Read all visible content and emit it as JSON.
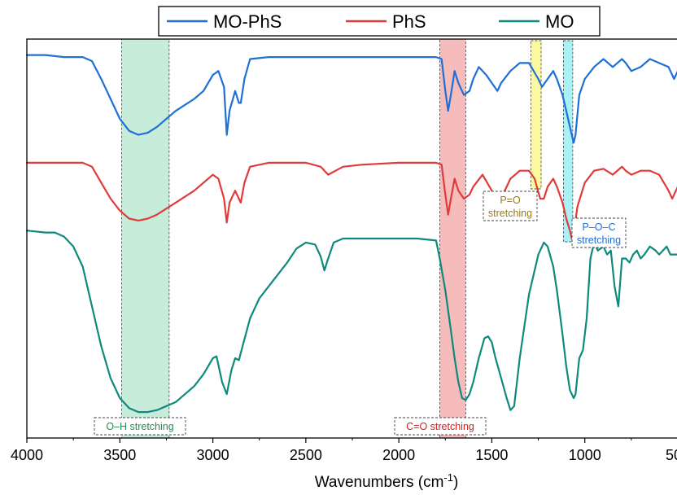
{
  "chart_data": {
    "type": "line",
    "xlabel": "Wavenumbers (cm",
    "xlabel_sup": "-1",
    "xlabel_suffix": ")",
    "xlim": [
      4000,
      500
    ],
    "x_reversed": true,
    "y_ticks_shown": false,
    "xticks": [
      4000,
      3500,
      3000,
      2500,
      2000,
      1500,
      1000,
      500
    ],
    "xtick_labels": [
      "4000",
      "3500",
      "3000",
      "2500",
      "2000",
      "1500",
      "1000",
      "500"
    ],
    "legend": {
      "placement": "top-outside",
      "entries": [
        {
          "name": "MO-PhS",
          "color": "#1f6fd6"
        },
        {
          "name": "PhS",
          "color": "#e03b3b"
        },
        {
          "name": "MO",
          "color": "#0e8a7c"
        }
      ]
    },
    "series": [
      {
        "name": "MO-PhS",
        "color": "#1f6fd6",
        "points": [
          [
            4000,
            0.96
          ],
          [
            3900,
            0.96
          ],
          [
            3800,
            0.955
          ],
          [
            3700,
            0.955
          ],
          [
            3650,
            0.945
          ],
          [
            3600,
            0.9
          ],
          [
            3550,
            0.85
          ],
          [
            3500,
            0.8
          ],
          [
            3450,
            0.77
          ],
          [
            3400,
            0.76
          ],
          [
            3350,
            0.765
          ],
          [
            3300,
            0.78
          ],
          [
            3200,
            0.82
          ],
          [
            3100,
            0.85
          ],
          [
            3050,
            0.87
          ],
          [
            3000,
            0.91
          ],
          [
            2970,
            0.92
          ],
          [
            2940,
            0.88
          ],
          [
            2925,
            0.76
          ],
          [
            2910,
            0.82
          ],
          [
            2880,
            0.87
          ],
          [
            2860,
            0.84
          ],
          [
            2850,
            0.84
          ],
          [
            2830,
            0.9
          ],
          [
            2800,
            0.95
          ],
          [
            2700,
            0.955
          ],
          [
            2500,
            0.955
          ],
          [
            2200,
            0.955
          ],
          [
            2000,
            0.955
          ],
          [
            1800,
            0.955
          ],
          [
            1770,
            0.95
          ],
          [
            1750,
            0.87
          ],
          [
            1735,
            0.82
          ],
          [
            1720,
            0.86
          ],
          [
            1700,
            0.92
          ],
          [
            1680,
            0.89
          ],
          [
            1650,
            0.86
          ],
          [
            1620,
            0.87
          ],
          [
            1600,
            0.9
          ],
          [
            1570,
            0.93
          ],
          [
            1530,
            0.91
          ],
          [
            1470,
            0.87
          ],
          [
            1450,
            0.89
          ],
          [
            1400,
            0.92
          ],
          [
            1350,
            0.94
          ],
          [
            1300,
            0.94
          ],
          [
            1250,
            0.9
          ],
          [
            1230,
            0.88
          ],
          [
            1200,
            0.9
          ],
          [
            1170,
            0.92
          ],
          [
            1150,
            0.9
          ],
          [
            1120,
            0.86
          ],
          [
            1100,
            0.82
          ],
          [
            1080,
            0.78
          ],
          [
            1060,
            0.74
          ],
          [
            1050,
            0.76
          ],
          [
            1030,
            0.86
          ],
          [
            1000,
            0.9
          ],
          [
            950,
            0.93
          ],
          [
            900,
            0.95
          ],
          [
            850,
            0.93
          ],
          [
            800,
            0.95
          ],
          [
            780,
            0.94
          ],
          [
            750,
            0.92
          ],
          [
            700,
            0.93
          ],
          [
            650,
            0.95
          ],
          [
            600,
            0.94
          ],
          [
            550,
            0.93
          ],
          [
            520,
            0.9
          ],
          [
            500,
            0.92
          ]
        ]
      },
      {
        "name": "PhS",
        "color": "#e03b3b",
        "points": [
          [
            4000,
            0.69
          ],
          [
            3900,
            0.69
          ],
          [
            3800,
            0.69
          ],
          [
            3700,
            0.69
          ],
          [
            3650,
            0.68
          ],
          [
            3600,
            0.64
          ],
          [
            3550,
            0.6
          ],
          [
            3500,
            0.57
          ],
          [
            3450,
            0.55
          ],
          [
            3400,
            0.545
          ],
          [
            3350,
            0.55
          ],
          [
            3300,
            0.56
          ],
          [
            3200,
            0.59
          ],
          [
            3100,
            0.62
          ],
          [
            3050,
            0.64
          ],
          [
            3000,
            0.66
          ],
          [
            2970,
            0.65
          ],
          [
            2940,
            0.6
          ],
          [
            2925,
            0.54
          ],
          [
            2910,
            0.59
          ],
          [
            2880,
            0.62
          ],
          [
            2860,
            0.6
          ],
          [
            2850,
            0.59
          ],
          [
            2830,
            0.64
          ],
          [
            2800,
            0.68
          ],
          [
            2700,
            0.69
          ],
          [
            2500,
            0.69
          ],
          [
            2420,
            0.68
          ],
          [
            2380,
            0.66
          ],
          [
            2340,
            0.67
          ],
          [
            2300,
            0.68
          ],
          [
            2200,
            0.685
          ],
          [
            2000,
            0.69
          ],
          [
            1800,
            0.69
          ],
          [
            1770,
            0.685
          ],
          [
            1750,
            0.61
          ],
          [
            1735,
            0.56
          ],
          [
            1720,
            0.6
          ],
          [
            1700,
            0.65
          ],
          [
            1680,
            0.62
          ],
          [
            1650,
            0.6
          ],
          [
            1620,
            0.61
          ],
          [
            1600,
            0.63
          ],
          [
            1550,
            0.66
          ],
          [
            1500,
            0.62
          ],
          [
            1470,
            0.6
          ],
          [
            1430,
            0.62
          ],
          [
            1400,
            0.65
          ],
          [
            1350,
            0.67
          ],
          [
            1300,
            0.67
          ],
          [
            1270,
            0.65
          ],
          [
            1240,
            0.6
          ],
          [
            1220,
            0.6
          ],
          [
            1200,
            0.63
          ],
          [
            1170,
            0.65
          ],
          [
            1150,
            0.63
          ],
          [
            1120,
            0.59
          ],
          [
            1100,
            0.55
          ],
          [
            1080,
            0.52
          ],
          [
            1070,
            0.5
          ],
          [
            1060,
            0.51
          ],
          [
            1040,
            0.58
          ],
          [
            1000,
            0.64
          ],
          [
            950,
            0.67
          ],
          [
            900,
            0.675
          ],
          [
            850,
            0.66
          ],
          [
            800,
            0.68
          ],
          [
            780,
            0.67
          ],
          [
            750,
            0.66
          ],
          [
            700,
            0.67
          ],
          [
            650,
            0.67
          ],
          [
            600,
            0.66
          ],
          [
            550,
            0.62
          ],
          [
            530,
            0.6
          ],
          [
            500,
            0.63
          ]
        ]
      },
      {
        "name": "MO",
        "color": "#0e8a7c",
        "points": [
          [
            4000,
            0.52
          ],
          [
            3900,
            0.515
          ],
          [
            3850,
            0.515
          ],
          [
            3800,
            0.505
          ],
          [
            3750,
            0.48
          ],
          [
            3700,
            0.43
          ],
          [
            3650,
            0.33
          ],
          [
            3600,
            0.23
          ],
          [
            3550,
            0.15
          ],
          [
            3500,
            0.1
          ],
          [
            3450,
            0.075
          ],
          [
            3400,
            0.065
          ],
          [
            3350,
            0.065
          ],
          [
            3300,
            0.07
          ],
          [
            3200,
            0.09
          ],
          [
            3100,
            0.13
          ],
          [
            3050,
            0.16
          ],
          [
            3000,
            0.2
          ],
          [
            2980,
            0.205
          ],
          [
            2950,
            0.14
          ],
          [
            2925,
            0.11
          ],
          [
            2900,
            0.17
          ],
          [
            2880,
            0.2
          ],
          [
            2860,
            0.195
          ],
          [
            2840,
            0.23
          ],
          [
            2800,
            0.3
          ],
          [
            2750,
            0.35
          ],
          [
            2700,
            0.38
          ],
          [
            2600,
            0.44
          ],
          [
            2550,
            0.475
          ],
          [
            2500,
            0.49
          ],
          [
            2450,
            0.485
          ],
          [
            2420,
            0.455
          ],
          [
            2400,
            0.42
          ],
          [
            2380,
            0.45
          ],
          [
            2350,
            0.49
          ],
          [
            2300,
            0.5
          ],
          [
            2200,
            0.5
          ],
          [
            2100,
            0.5
          ],
          [
            2000,
            0.5
          ],
          [
            1900,
            0.5
          ],
          [
            1800,
            0.495
          ],
          [
            1780,
            0.45
          ],
          [
            1750,
            0.37
          ],
          [
            1720,
            0.27
          ],
          [
            1700,
            0.2
          ],
          [
            1680,
            0.14
          ],
          [
            1660,
            0.1
          ],
          [
            1640,
            0.095
          ],
          [
            1620,
            0.11
          ],
          [
            1600,
            0.14
          ],
          [
            1570,
            0.2
          ],
          [
            1540,
            0.25
          ],
          [
            1520,
            0.255
          ],
          [
            1500,
            0.24
          ],
          [
            1480,
            0.2
          ],
          [
            1450,
            0.15
          ],
          [
            1420,
            0.1
          ],
          [
            1400,
            0.07
          ],
          [
            1380,
            0.08
          ],
          [
            1350,
            0.2
          ],
          [
            1300,
            0.36
          ],
          [
            1250,
            0.46
          ],
          [
            1220,
            0.49
          ],
          [
            1200,
            0.48
          ],
          [
            1170,
            0.43
          ],
          [
            1150,
            0.37
          ],
          [
            1120,
            0.26
          ],
          [
            1100,
            0.18
          ],
          [
            1080,
            0.12
          ],
          [
            1060,
            0.1
          ],
          [
            1050,
            0.11
          ],
          [
            1030,
            0.2
          ],
          [
            1010,
            0.22
          ],
          [
            990,
            0.3
          ],
          [
            970,
            0.45
          ],
          [
            950,
            0.49
          ],
          [
            930,
            0.47
          ],
          [
            900,
            0.48
          ],
          [
            880,
            0.46
          ],
          [
            860,
            0.47
          ],
          [
            840,
            0.38
          ],
          [
            820,
            0.33
          ],
          [
            800,
            0.45
          ],
          [
            780,
            0.45
          ],
          [
            760,
            0.44
          ],
          [
            740,
            0.46
          ],
          [
            720,
            0.47
          ],
          [
            700,
            0.45
          ],
          [
            680,
            0.46
          ],
          [
            650,
            0.48
          ],
          [
            620,
            0.47
          ],
          [
            600,
            0.46
          ],
          [
            580,
            0.47
          ],
          [
            560,
            0.48
          ],
          [
            540,
            0.46
          ],
          [
            520,
            0.46
          ],
          [
            500,
            0.46
          ]
        ]
      }
    ],
    "annotations": [
      {
        "label": "O–H stretching",
        "range": [
          3490,
          3235
        ],
        "fill": "#c7ecd9",
        "text_color": "#2a8a52"
      },
      {
        "label": "C=O stretching",
        "range": [
          1780,
          1640
        ],
        "fill": "#f6bcbc",
        "text_color": "#d62020"
      },
      {
        "label": "P=O",
        "label2": "stretching",
        "range": [
          1290,
          1235
        ],
        "fill": "#fbfaa0",
        "text_color": "#9a7a10"
      },
      {
        "label": "P–O–C",
        "label2": "stretching",
        "range": [
          1115,
          1065
        ],
        "fill": "#a9f1f4",
        "text_color": "#1f6fd6"
      }
    ]
  }
}
